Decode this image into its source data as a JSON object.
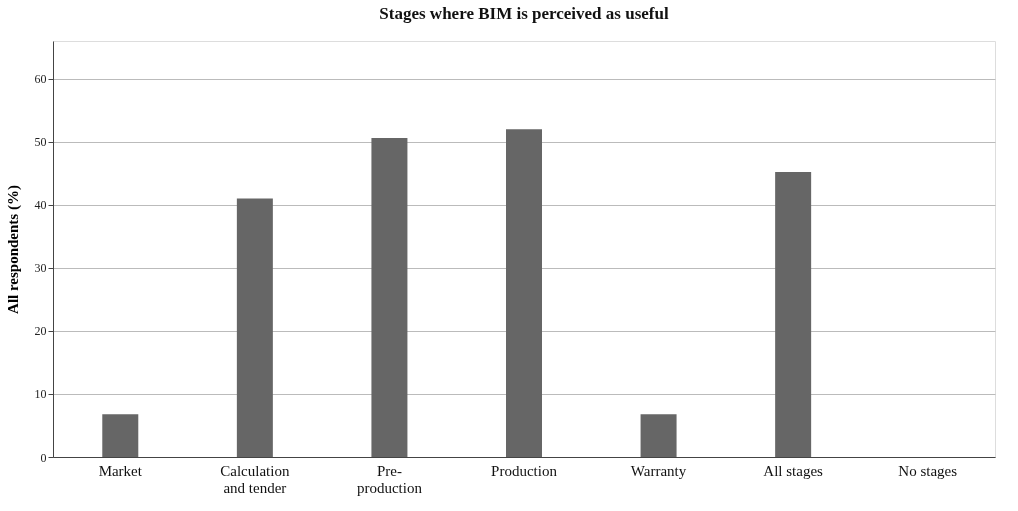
{
  "chart_data": {
    "type": "bar",
    "title": "Stages where BIM is perceived as useful",
    "ylabel": "All respondents (%)",
    "categories": [
      "Market",
      "Calculation and tender",
      "Pre-production",
      "Production",
      "Warranty",
      "All stages",
      "No stages"
    ],
    "values": [
      6.8,
      41.0,
      50.6,
      52.0,
      6.8,
      45.2,
      0
    ],
    "color": "#666666",
    "ylim": [
      0,
      66
    ],
    "yticks": [
      0,
      10,
      20,
      30,
      40,
      50,
      60
    ],
    "grid": "y"
  }
}
